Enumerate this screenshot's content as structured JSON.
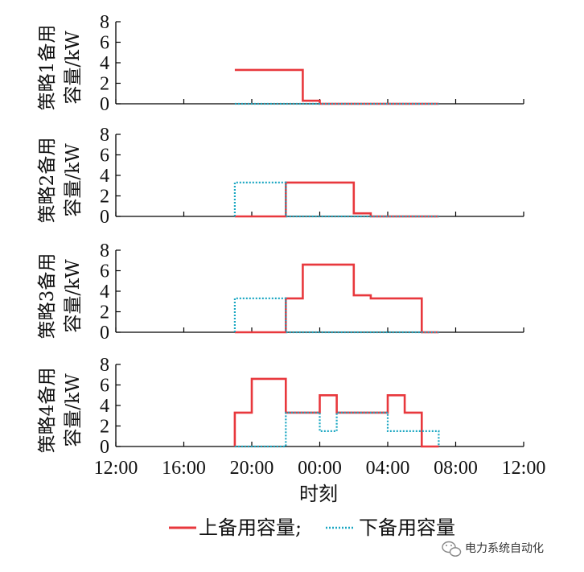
{
  "chart_data": {
    "type": "line",
    "step": true,
    "x_unit": "hours from 12:00",
    "xlim": [
      0,
      24
    ],
    "xticks": [
      "12:00",
      "16:00",
      "20:00",
      "00:00",
      "04:00",
      "08:00",
      "12:00"
    ],
    "xlabel": "时刻",
    "ylim": [
      0,
      8
    ],
    "yticks": [
      "0",
      "2",
      "4",
      "6",
      "8"
    ],
    "colors": {
      "up": "#e8383d",
      "down": "#1ba7c2"
    },
    "series_names": {
      "up": "上备用容量;",
      "down": "下备用容量"
    },
    "panels": [
      {
        "ylabel_line1": "策略1备用",
        "ylabel_line2": "容量/kW",
        "series": [
          {
            "key": "up",
            "x": [
              7,
              11,
              11,
              12,
              12,
              19
            ],
            "y": [
              3.3,
              3.3,
              0.3,
              0.3,
              0,
              0
            ]
          },
          {
            "key": "down",
            "x": [
              7,
              19
            ],
            "y": [
              0,
              0
            ]
          }
        ]
      },
      {
        "ylabel_line1": "策略2备用",
        "ylabel_line2": "容量/kW",
        "series": [
          {
            "key": "up",
            "x": [
              7,
              10,
              10,
              14,
              14,
              15,
              15,
              19
            ],
            "y": [
              0,
              0,
              3.3,
              3.3,
              0.3,
              0.3,
              0,
              0
            ]
          },
          {
            "key": "down",
            "x": [
              7,
              7,
              10,
              10,
              19
            ],
            "y": [
              0,
              3.3,
              3.3,
              0,
              0
            ]
          }
        ]
      },
      {
        "ylabel_line1": "策略3备用",
        "ylabel_line2": "容量/kW",
        "series": [
          {
            "key": "up",
            "x": [
              7,
              10,
              10,
              11,
              11,
              14,
              14,
              15,
              15,
              18,
              18,
              19
            ],
            "y": [
              0,
              0,
              3.3,
              3.3,
              6.6,
              6.6,
              3.6,
              3.6,
              3.3,
              3.3,
              0,
              0
            ]
          },
          {
            "key": "down",
            "x": [
              7,
              7,
              10,
              10,
              19
            ],
            "y": [
              0,
              3.3,
              3.3,
              0,
              0
            ]
          }
        ]
      },
      {
        "ylabel_line1": "策略4备用",
        "ylabel_line2": "容量/kW",
        "series": [
          {
            "key": "up",
            "x": [
              7,
              7,
              8,
              8,
              10,
              10,
              12,
              12,
              13,
              13,
              16,
              16,
              17,
              17,
              18,
              18,
              19
            ],
            "y": [
              0,
              3.3,
              3.3,
              6.6,
              6.6,
              3.3,
              3.3,
              5.0,
              5.0,
              3.3,
              3.3,
              5.0,
              5.0,
              3.3,
              3.3,
              0,
              0
            ]
          },
          {
            "key": "down",
            "x": [
              7,
              10,
              10,
              12,
              12,
              13,
              13,
              16,
              16,
              18,
              18,
              19,
              19
            ],
            "y": [
              0,
              0,
              3.3,
              3.3,
              1.5,
              1.5,
              3.3,
              3.3,
              1.5,
              1.5,
              1.5,
              1.5,
              0
            ]
          }
        ]
      }
    ]
  },
  "watermark": {
    "text": "电力系统自动化",
    "icon": "wechat-icon"
  }
}
